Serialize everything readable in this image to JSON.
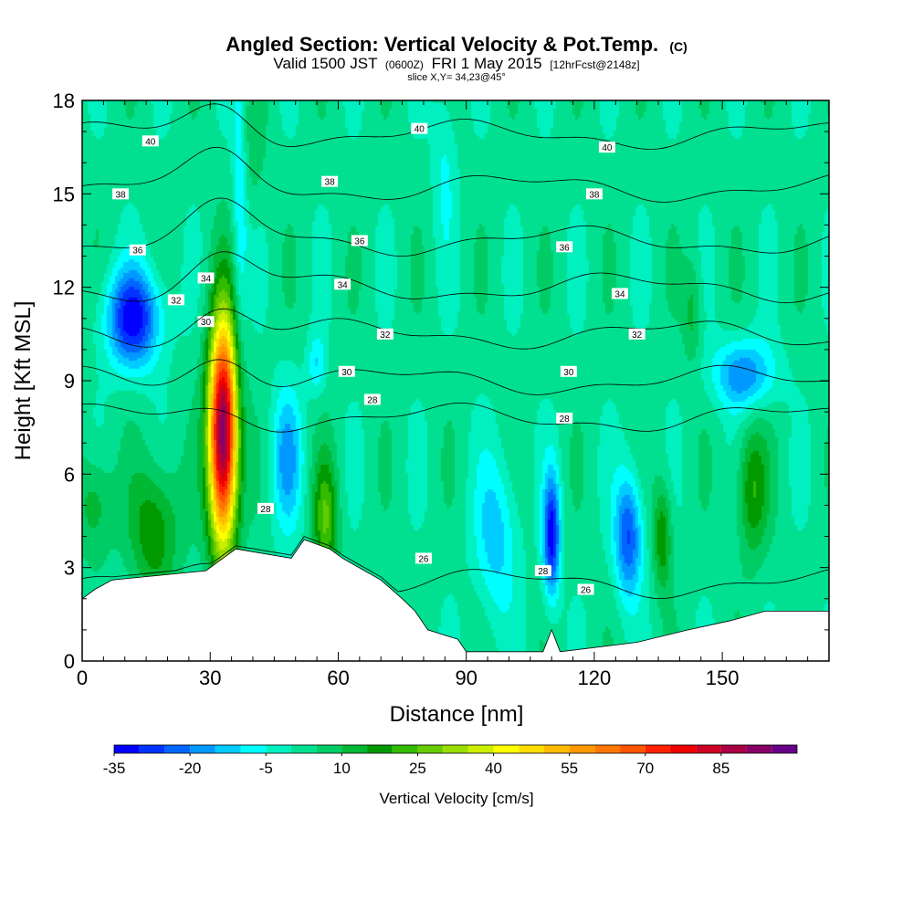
{
  "chart_data": {
    "type": "heatmap",
    "title": "Angled Section: Vertical Velocity & Pot.Temp.",
    "title_suffix": "(C)",
    "subtitle_parts": [
      "Valid 1500 JST",
      "(0600Z)",
      "FRI 1 May 2015",
      "[12hrFcst@2148z]"
    ],
    "subtitle2": "slice X,Y= 34,23@45°",
    "xlabel": "Distance [nm]",
    "ylabel": "Height [Kft MSL]",
    "xlim": [
      0,
      175
    ],
    "ylim": [
      0,
      18
    ],
    "x_ticks": [
      0,
      30,
      60,
      90,
      120,
      150
    ],
    "y_ticks": [
      0,
      3,
      6,
      9,
      12,
      15,
      18
    ],
    "colorbar": {
      "label": "Vertical Velocity [cm/s]",
      "min": -35,
      "step": 5,
      "tick_labels": [
        "-35",
        "-20",
        "-5",
        "10",
        "25",
        "40",
        "55",
        "70",
        "85"
      ],
      "colors": [
        "#0000ff",
        "#0033ff",
        "#0066ff",
        "#0099ff",
        "#00ccff",
        "#00ffff",
        "#00f0c0",
        "#00e090",
        "#00cc66",
        "#00b833",
        "#009900",
        "#33bb00",
        "#66cc00",
        "#99dd00",
        "#ccee00",
        "#ffff00",
        "#ffdd00",
        "#ffbb00",
        "#ff9900",
        "#ff7700",
        "#ff5500",
        "#ff2200",
        "#ee0000",
        "#cc0022",
        "#aa0044",
        "#880066",
        "#660088"
      ]
    },
    "velocity_features": [
      {
        "x": 33,
        "y": 7.3,
        "sx": 2.4,
        "sy": 2.6,
        "w": 95
      },
      {
        "x": 12,
        "y": 11.0,
        "sx": 4.5,
        "sy": 1.1,
        "w": -35
      },
      {
        "x": 48,
        "y": 6.5,
        "sx": 2.5,
        "sy": 1.6,
        "w": -18
      },
      {
        "x": 55,
        "y": 9.5,
        "sx": 1.5,
        "sy": 0.7,
        "w": -12
      },
      {
        "x": 37,
        "y": 14.5,
        "sx": 1.2,
        "sy": 3.5,
        "w": -12
      },
      {
        "x": 110,
        "y": 4.0,
        "sx": 1.4,
        "sy": 1.4,
        "w": -35
      },
      {
        "x": 97,
        "y": 4.0,
        "sx": 3.5,
        "sy": 1.8,
        "w": -15
      },
      {
        "x": 128,
        "y": 4.0,
        "sx": 2.3,
        "sy": 1.4,
        "w": -28
      },
      {
        "x": 155,
        "y": 9.2,
        "sx": 5.0,
        "sy": 0.8,
        "w": -22
      },
      {
        "x": 17,
        "y": 4.2,
        "sx": 4.0,
        "sy": 1.5,
        "w": 18
      },
      {
        "x": 57,
        "y": 4.5,
        "sx": 2.0,
        "sy": 1.4,
        "w": 22
      },
      {
        "x": 136,
        "y": 4.0,
        "sx": 1.5,
        "sy": 1.2,
        "w": 18
      },
      {
        "x": 157,
        "y": 5.5,
        "sx": 2.5,
        "sy": 1.5,
        "w": 18
      },
      {
        "x": 3,
        "y": 5.0,
        "sx": 3.0,
        "sy": 1.2,
        "w": 12
      },
      {
        "x": 143,
        "y": 11.2,
        "sx": 1.5,
        "sy": 1.2,
        "w": 10
      },
      {
        "x": 40,
        "y": 16.5,
        "sx": 2.0,
        "sy": 1.5,
        "w": 6
      },
      {
        "x": 85,
        "y": 16.0,
        "sx": 2.0,
        "sy": 2.0,
        "w": -8
      }
    ],
    "terrain_kft": [
      {
        "x": 0,
        "y": 2.0
      },
      {
        "x": 3,
        "y": 2.3
      },
      {
        "x": 7,
        "y": 2.6
      },
      {
        "x": 29,
        "y": 2.9
      },
      {
        "x": 32,
        "y": 3.2
      },
      {
        "x": 36,
        "y": 3.6
      },
      {
        "x": 49,
        "y": 3.3
      },
      {
        "x": 52,
        "y": 3.9
      },
      {
        "x": 58,
        "y": 3.6
      },
      {
        "x": 61,
        "y": 3.3
      },
      {
        "x": 70,
        "y": 2.6
      },
      {
        "x": 75,
        "y": 2.0
      },
      {
        "x": 78,
        "y": 1.6
      },
      {
        "x": 81,
        "y": 1.0
      },
      {
        "x": 88,
        "y": 0.7
      },
      {
        "x": 90,
        "y": 0.3
      },
      {
        "x": 108,
        "y": 0.3
      },
      {
        "x": 110,
        "y": 1.0
      },
      {
        "x": 112,
        "y": 0.3
      },
      {
        "x": 130,
        "y": 0.6
      },
      {
        "x": 142,
        "y": 1.0
      },
      {
        "x": 152,
        "y": 1.3
      },
      {
        "x": 160,
        "y": 1.6
      },
      {
        "x": 175,
        "y": 1.6
      }
    ],
    "theta_contours": [
      {
        "value": 26,
        "label": "26",
        "y0": 2.5,
        "label_pos": [
          [
            80,
            3.3
          ],
          [
            118,
            2.3
          ]
        ]
      },
      {
        "value": 28,
        "label": "28",
        "y0": 7.8,
        "label_pos": [
          [
            43,
            4.9
          ],
          [
            68,
            8.4
          ],
          [
            113,
            7.8
          ],
          [
            108,
            2.9
          ]
        ]
      },
      {
        "value": 30,
        "label": "30",
        "y0": 9.0,
        "label_pos": [
          [
            29,
            10.9
          ],
          [
            62,
            9.3
          ],
          [
            114,
            9.3
          ]
        ]
      },
      {
        "value": 32,
        "label": "32",
        "y0": 10.5,
        "label_pos": [
          [
            22,
            11.6
          ],
          [
            71,
            10.5
          ],
          [
            130,
            10.5
          ]
        ]
      },
      {
        "value": 34,
        "label": "34",
        "y0": 12.0,
        "label_pos": [
          [
            29,
            12.3
          ],
          [
            61,
            12.1
          ],
          [
            126,
            11.8
          ]
        ]
      },
      {
        "value": 36,
        "label": "36",
        "y0": 13.5,
        "label_pos": [
          [
            13,
            13.2
          ],
          [
            65,
            13.5
          ],
          [
            113,
            13.3
          ]
        ]
      },
      {
        "value": 38,
        "label": "38",
        "y0": 15.2,
        "label_pos": [
          [
            9,
            15.0
          ],
          [
            58,
            15.4
          ],
          [
            120,
            15.0
          ]
        ]
      },
      {
        "value": 40,
        "label": "40",
        "y0": 16.9,
        "label_pos": [
          [
            16,
            16.7
          ],
          [
            79,
            17.1
          ],
          [
            123,
            16.5
          ]
        ]
      }
    ]
  }
}
